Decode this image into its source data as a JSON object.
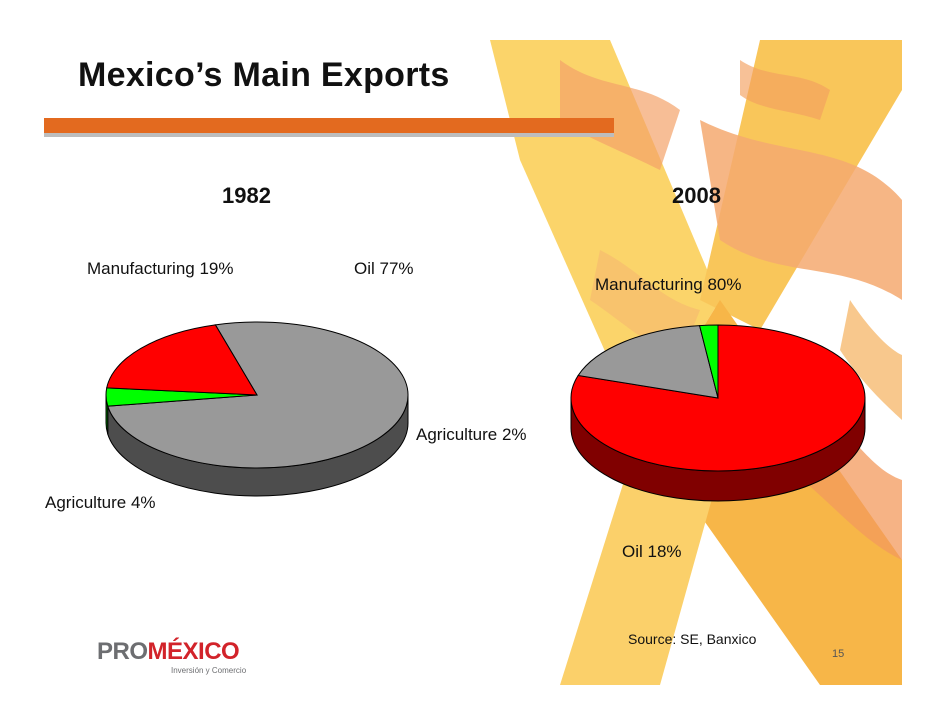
{
  "slide": {
    "title": "Mexico’s Main Exports",
    "source": "Source: SE, Banxico",
    "page_number": "15",
    "logo": {
      "part1": "PRO",
      "part2": "MÉXICO",
      "tagline": "Inversión y Comercio"
    }
  },
  "colors": {
    "manufacturing": "#ff0000",
    "oil": "#999999",
    "agriculture": "#00ff00",
    "accent_bar": "#e36a1f",
    "background_art": "#f7c95a"
  },
  "chart_data": [
    {
      "type": "pie",
      "title": "1982",
      "three_d": true,
      "slices": [
        {
          "name": "Oil",
          "value": 77,
          "label": "Oil 77%"
        },
        {
          "name": "Agriculture",
          "value": 4,
          "label": "Agriculture 4%"
        },
        {
          "name": "Manufacturing",
          "value": 19,
          "label": "Manufacturing 19%"
        }
      ]
    },
    {
      "type": "pie",
      "title": "2008",
      "three_d": true,
      "slices": [
        {
          "name": "Manufacturing",
          "value": 80,
          "label": "Manufacturing 80%"
        },
        {
          "name": "Oil",
          "value": 18,
          "label": "Oil 18%"
        },
        {
          "name": "Agriculture",
          "value": 2,
          "label": "Agriculture 2%"
        }
      ]
    }
  ]
}
